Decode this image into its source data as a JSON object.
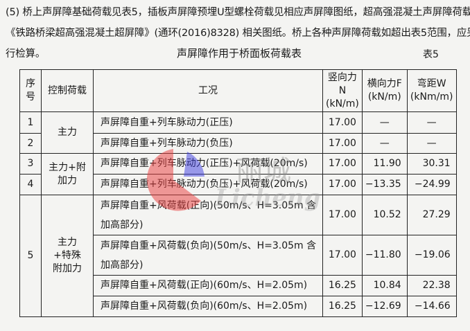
{
  "paragraph": [
    "(5) 桥上声屏障基础荷载见表5，插板声屏障预埋U型螺栓荷载见相应声屏障图纸，超高强混凝土声屏障荷载见",
    "《铁路桥梁超高强混凝土超屏障》(通环(2016)8328) 相关图纸。桥上各种声屏障荷载如超出表5范围，应另",
    "行检算。"
  ],
  "table_title": "声屏障作用于桥面板荷载表",
  "table_no": "表5",
  "headers": {
    "no": "序号",
    "control": "控制荷载",
    "case": "工况",
    "n": "竖向力N",
    "n_unit": "(kN/m)",
    "f": "横向力F",
    "f_unit": "(kN/m)",
    "w": "弯距W",
    "w_unit": "(kNm/m)"
  },
  "groups": [
    "主力",
    "主力+附加力",
    "主力+特殊附加力"
  ],
  "rows": [
    {
      "no": "1",
      "case": "声屏障自重+列车脉动力(正压)",
      "n": "17.00",
      "f": "—",
      "w": "—"
    },
    {
      "no": "2",
      "case": "声屏障自重+列车脉动力(负压)",
      "n": "17.00",
      "f": "—",
      "w": "—"
    },
    {
      "no": "3",
      "case": "声屏障自重+列车脉动力(正压)+风荷载(20m/s)",
      "n": "17.00",
      "f": "11.90",
      "w": "30.31"
    },
    {
      "no": "4",
      "case": "声屏障自重+列车脉动力(负压)+风荷载(20m/s)",
      "n": "17.00",
      "f": "−13.35",
      "w": "−24.99"
    },
    {
      "no": "5",
      "case": "声屏障自重+风荷载(正向)(50m/s、H=3.05m 含加高部分)",
      "n": "17.00",
      "f": "10.52",
      "w": "27.29"
    },
    {
      "no": "",
      "case": "声屏障自重+风荷载(负向)(50m/s、H=3.05m 含加高部分)",
      "n": "17.00",
      "f": "−11.80",
      "w": "−19.06"
    },
    {
      "no": "",
      "case": "声屏障自重+风荷载(正向)(60m/s、H=2.05m)",
      "n": "16.25",
      "f": "10.84",
      "w": "22.38"
    },
    {
      "no": "",
      "case": "声屏障自重+风荷载(负向)(60m/s、H=2.05m)",
      "n": "16.25",
      "f": "−12.69",
      "w": "−14.66"
    }
  ],
  "watermark": {
    "cn": "丽城",
    "en": "Licheng",
    "colors": [
      "#e84040",
      "#3a3ae0",
      "#888888"
    ]
  }
}
